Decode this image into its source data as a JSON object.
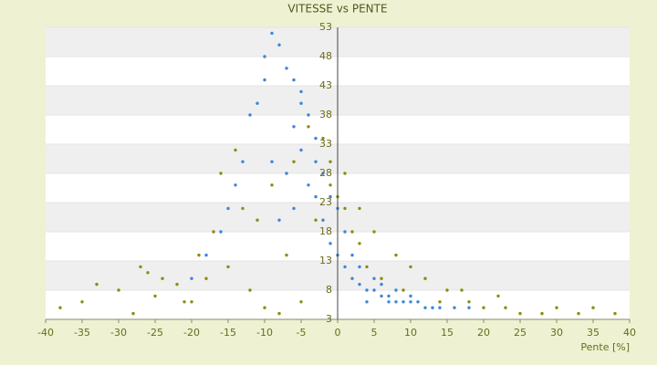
{
  "chart_data": {
    "type": "scatter",
    "title": "VITESSE vs PENTE",
    "x_label": "Pente [%]",
    "xlim": [
      -40,
      40
    ],
    "xticks": [
      -40,
      -35,
      -30,
      -25,
      -20,
      -15,
      -10,
      -5,
      0,
      5,
      10,
      15,
      20,
      25,
      30,
      35,
      40
    ],
    "ylim": [
      3,
      53
    ],
    "yticks": [
      3,
      8,
      13,
      18,
      23,
      28,
      33,
      38,
      43,
      48,
      53
    ],
    "grid": true,
    "series": [
      {
        "color": "#8c8c10",
        "x": [
          -38,
          -35,
          -30,
          -28,
          -25,
          -22,
          -20,
          -18,
          -15,
          -12,
          -10,
          -8,
          -5,
          -3,
          -1,
          1,
          3,
          5,
          8,
          10,
          12,
          15,
          18,
          20,
          22,
          25,
          28,
          30,
          33,
          35,
          38,
          -33,
          -27,
          -24,
          -19,
          -17,
          -13,
          -9,
          -6,
          -2,
          0,
          2,
          4,
          6,
          9,
          14,
          17,
          23,
          -16,
          -14,
          -11,
          -4,
          -1,
          1,
          3,
          -7,
          -21,
          -26
        ],
        "values": [
          5,
          6,
          8,
          4,
          7,
          9,
          6,
          10,
          12,
          8,
          5,
          4,
          6,
          20,
          26,
          28,
          22,
          18,
          14,
          12,
          10,
          8,
          6,
          5,
          7,
          4,
          4,
          5,
          4,
          5,
          4,
          9,
          12,
          10,
          14,
          18,
          22,
          26,
          30,
          34,
          24,
          18,
          12,
          10,
          8,
          6,
          8,
          5,
          28,
          32,
          20,
          36,
          30,
          22,
          16,
          14,
          6,
          11
        ]
      },
      {
        "color": "#3a87d8",
        "x": [
          -10,
          -9,
          -8,
          -7,
          -6,
          -5,
          -4,
          -3,
          -11,
          -12,
          -9,
          -7,
          -6,
          -5,
          -4,
          -13,
          -14,
          -8,
          -6,
          -3,
          -2,
          -1,
          0,
          1,
          2,
          3,
          4,
          5,
          6,
          7,
          8,
          9,
          10,
          12,
          14,
          16,
          18,
          2,
          3,
          5,
          6,
          8,
          10,
          1,
          0,
          -1,
          -2,
          -15,
          -16,
          -18,
          -20,
          -10,
          -5,
          -3,
          4,
          7,
          11,
          13
        ],
        "values": [
          48,
          52,
          50,
          46,
          44,
          42,
          38,
          34,
          40,
          38,
          30,
          28,
          36,
          32,
          26,
          30,
          26,
          20,
          22,
          24,
          20,
          16,
          14,
          12,
          10,
          9,
          8,
          8,
          7,
          7,
          6,
          6,
          6,
          5,
          5,
          5,
          5,
          14,
          12,
          10,
          9,
          8,
          7,
          18,
          22,
          24,
          28,
          22,
          18,
          14,
          10,
          44,
          40,
          30,
          6,
          6,
          6,
          5
        ]
      }
    ]
  }
}
